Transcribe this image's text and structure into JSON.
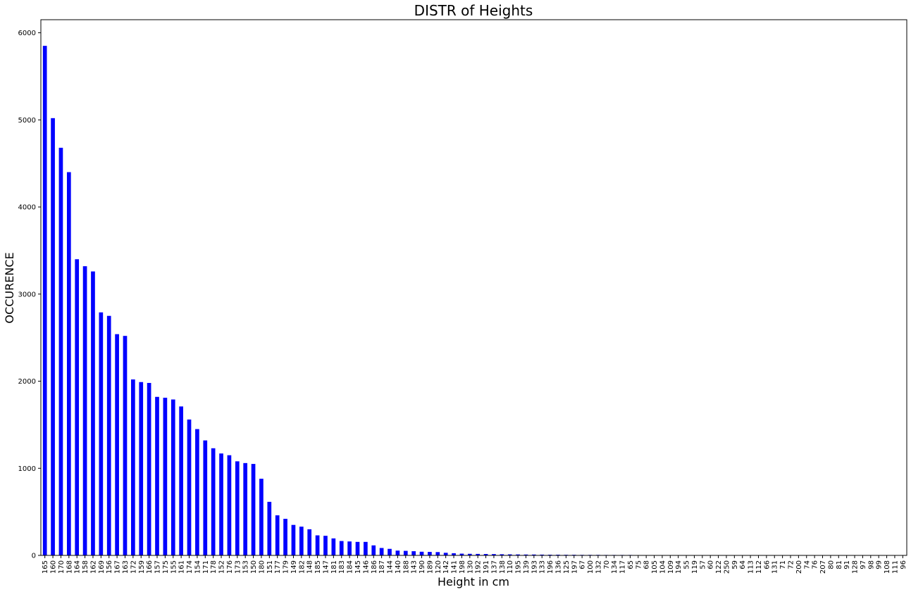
{
  "chart_data": {
    "type": "bar",
    "title": "DISTR of Heights",
    "xlabel": "Height in cm",
    "ylabel": "OCCURENCE",
    "ylim": [
      0,
      6150
    ],
    "yticks": [
      0,
      1000,
      2000,
      3000,
      4000,
      5000,
      6000
    ],
    "grid": false,
    "legend": "none",
    "bar_color": "#0000ff",
    "categories": [
      "165",
      "160",
      "170",
      "168",
      "164",
      "158",
      "162",
      "169",
      "156",
      "167",
      "163",
      "172",
      "159",
      "166",
      "157",
      "175",
      "155",
      "161",
      "174",
      "154",
      "171",
      "178",
      "152",
      "176",
      "173",
      "153",
      "150",
      "180",
      "151",
      "177",
      "179",
      "149",
      "182",
      "148",
      "185",
      "147",
      "181",
      "183",
      "184",
      "145",
      "146",
      "186",
      "187",
      "144",
      "140",
      "188",
      "143",
      "190",
      "189",
      "120",
      "142",
      "141",
      "198",
      "130",
      "192",
      "191",
      "137",
      "138",
      "110",
      "195",
      "139",
      "193",
      "133",
      "196",
      "136",
      "125",
      "197",
      "67",
      "100",
      "132",
      "70",
      "134",
      "117",
      "65",
      "75",
      "68",
      "105",
      "104",
      "109",
      "194",
      "55",
      "119",
      "57",
      "60",
      "122",
      "250",
      "59",
      "64",
      "113",
      "112",
      "66",
      "131",
      "71",
      "72",
      "200",
      "74",
      "76",
      "207",
      "80",
      "81",
      "91",
      "128",
      "97",
      "98",
      "99",
      "108",
      "111",
      "96"
    ],
    "values": [
      5850,
      5020,
      4680,
      4400,
      3400,
      3320,
      3260,
      2790,
      2750,
      2540,
      2520,
      2020,
      1990,
      1980,
      1820,
      1810,
      1790,
      1710,
      1560,
      1450,
      1320,
      1230,
      1170,
      1150,
      1080,
      1060,
      1050,
      880,
      615,
      460,
      420,
      350,
      330,
      300,
      230,
      225,
      195,
      165,
      160,
      155,
      155,
      115,
      85,
      75,
      55,
      52,
      48,
      42,
      40,
      38,
      30,
      25,
      20,
      18,
      17,
      16,
      15,
      13,
      12,
      11,
      10,
      10,
      9,
      8,
      8,
      7,
      7,
      6,
      6,
      6,
      5,
      5,
      5,
      5,
      4,
      4,
      4,
      4,
      4,
      3,
      3,
      3,
      2,
      2,
      2,
      2,
      2,
      2,
      2,
      2,
      2,
      1,
      1,
      1,
      1,
      1,
      1,
      1,
      1,
      1,
      1,
      1,
      1,
      1,
      1,
      1,
      1,
      1
    ]
  }
}
